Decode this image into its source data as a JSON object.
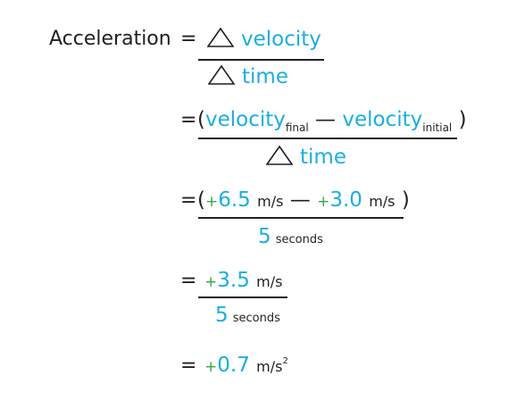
{
  "colors": {
    "text": "#231f20",
    "variable": "#1aaee3",
    "sign": "#35a849"
  },
  "line1": {
    "lhs": "Acceleration",
    "eq": "=",
    "num_delta_icon": "triangle-delta",
    "num": "velocity",
    "den_delta_icon": "triangle-delta",
    "den": "time"
  },
  "line2": {
    "eq": "=",
    "open": "(",
    "v1": "velocity",
    "v1_sub": "final",
    "minus": "—",
    "v2": "velocity",
    "v2_sub": "initial",
    "close": ")",
    "den_delta_icon": "triangle-delta",
    "den": "time"
  },
  "line3": {
    "eq": "=",
    "open": "(",
    "sign1": "+",
    "val1": "6.5",
    "unit1": "m/s",
    "minus": "—",
    "sign2": "+",
    "val2": "3.0",
    "unit2": "m/s",
    "close": ")",
    "den_val": "5",
    "den_unit": "seconds"
  },
  "line4": {
    "eq": "=",
    "sign": "+",
    "val": "3.5",
    "unit": "m/s",
    "den_val": "5",
    "den_unit": "seconds"
  },
  "line5": {
    "eq": "=",
    "sign": "+",
    "val": "0.7",
    "unit": "m/s",
    "exp": "2"
  }
}
